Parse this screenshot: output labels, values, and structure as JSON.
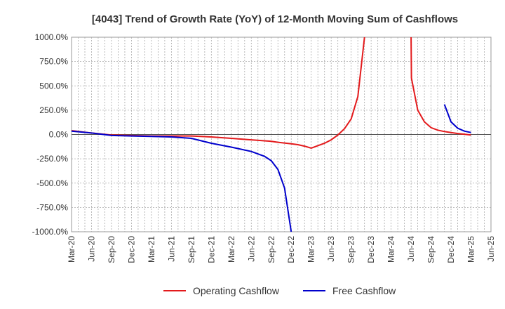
{
  "chart_data": {
    "type": "line",
    "title": "[4043]  Trend of Growth Rate (YoY) of 12-Month Moving Sum of Cashflows",
    "xlabel": "",
    "ylabel": "",
    "ylim": [
      -1000,
      1000
    ],
    "yticks": [
      1000,
      750,
      500,
      250,
      0,
      -250,
      -500,
      -750,
      -1000
    ],
    "ytick_labels": [
      "1000.0%",
      "750.0%",
      "500.0%",
      "250.0%",
      "0.0%",
      "-250.0%",
      "-500.0%",
      "-750.0%",
      "-1000.0%"
    ],
    "x_tick_labels": [
      "Mar-20",
      "Jun-20",
      "Sep-20",
      "Dec-20",
      "Mar-21",
      "Jun-21",
      "Sep-21",
      "Dec-21",
      "Mar-22",
      "Jun-22",
      "Sep-22",
      "Dec-22",
      "Mar-23",
      "Jun-23",
      "Sep-23",
      "Dec-23",
      "Mar-24",
      "Jun-24",
      "Sep-24",
      "Dec-24",
      "Mar-25",
      "Jun-25"
    ],
    "grid": true,
    "legend_position": "bottom",
    "series": [
      {
        "name": "Operating Cashflow",
        "color": "#e31a1c",
        "points": [
          [
            "Mar-20",
            40
          ],
          [
            "Jun-20",
            15
          ],
          [
            "Sep-20",
            -5
          ],
          [
            "Dec-20",
            -10
          ],
          [
            "Mar-21",
            -15
          ],
          [
            "Jun-21",
            -15
          ],
          [
            "Sep-21",
            -15
          ],
          [
            "Dec-21",
            -25
          ],
          [
            "Mar-22",
            -40
          ],
          [
            "Jun-22",
            -55
          ],
          [
            "Sep-22",
            -70
          ],
          [
            "Oct-22",
            -80
          ],
          [
            "Dec-22",
            -95
          ],
          [
            "Jan-23",
            -105
          ],
          [
            "Feb-23",
            -120
          ],
          [
            "Mar-23",
            -140
          ],
          [
            "Apr-23",
            -115
          ],
          [
            "May-23",
            -90
          ],
          [
            "Jun-23",
            -55
          ],
          [
            "Jul-23",
            -5
          ],
          [
            "Aug-23",
            60
          ],
          [
            "Sep-23",
            160
          ],
          [
            "Oct-23",
            390
          ],
          [
            "Nov-23",
            1000
          ],
          null,
          [
            "Jun-24",
            1000
          ],
          [
            "Jun-24b",
            580
          ],
          [
            "Jul-24",
            250
          ],
          [
            "Aug-24",
            130
          ],
          [
            "Sep-24",
            70
          ],
          [
            "Oct-24",
            45
          ],
          [
            "Nov-24",
            30
          ],
          [
            "Dec-24",
            20
          ],
          [
            "Jan-25",
            10
          ],
          [
            "Feb-25",
            3
          ],
          [
            "Mar-25",
            -5
          ]
        ]
      },
      {
        "name": "Free Cashflow",
        "color": "#0000cc",
        "points": [
          [
            "Mar-20",
            35
          ],
          [
            "Jun-20",
            15
          ],
          [
            "Sep-20",
            -10
          ],
          [
            "Dec-20",
            -15
          ],
          [
            "Mar-21",
            -20
          ],
          [
            "Jun-21",
            -25
          ],
          [
            "Sep-21",
            -40
          ],
          [
            "Dec-21",
            -90
          ],
          [
            "Mar-22",
            -130
          ],
          [
            "Jun-22",
            -175
          ],
          [
            "Jul-22",
            -200
          ],
          [
            "Aug-22",
            -225
          ],
          [
            "Sep-22",
            -270
          ],
          [
            "Oct-22",
            -360
          ],
          [
            "Nov-22",
            -550
          ],
          [
            "Dec-22",
            -1000
          ],
          null,
          [
            "Nov-24",
            310
          ],
          [
            "Dec-24",
            130
          ],
          [
            "Jan-25",
            65
          ],
          [
            "Feb-25",
            35
          ],
          [
            "Mar-25",
            20
          ]
        ]
      }
    ]
  }
}
